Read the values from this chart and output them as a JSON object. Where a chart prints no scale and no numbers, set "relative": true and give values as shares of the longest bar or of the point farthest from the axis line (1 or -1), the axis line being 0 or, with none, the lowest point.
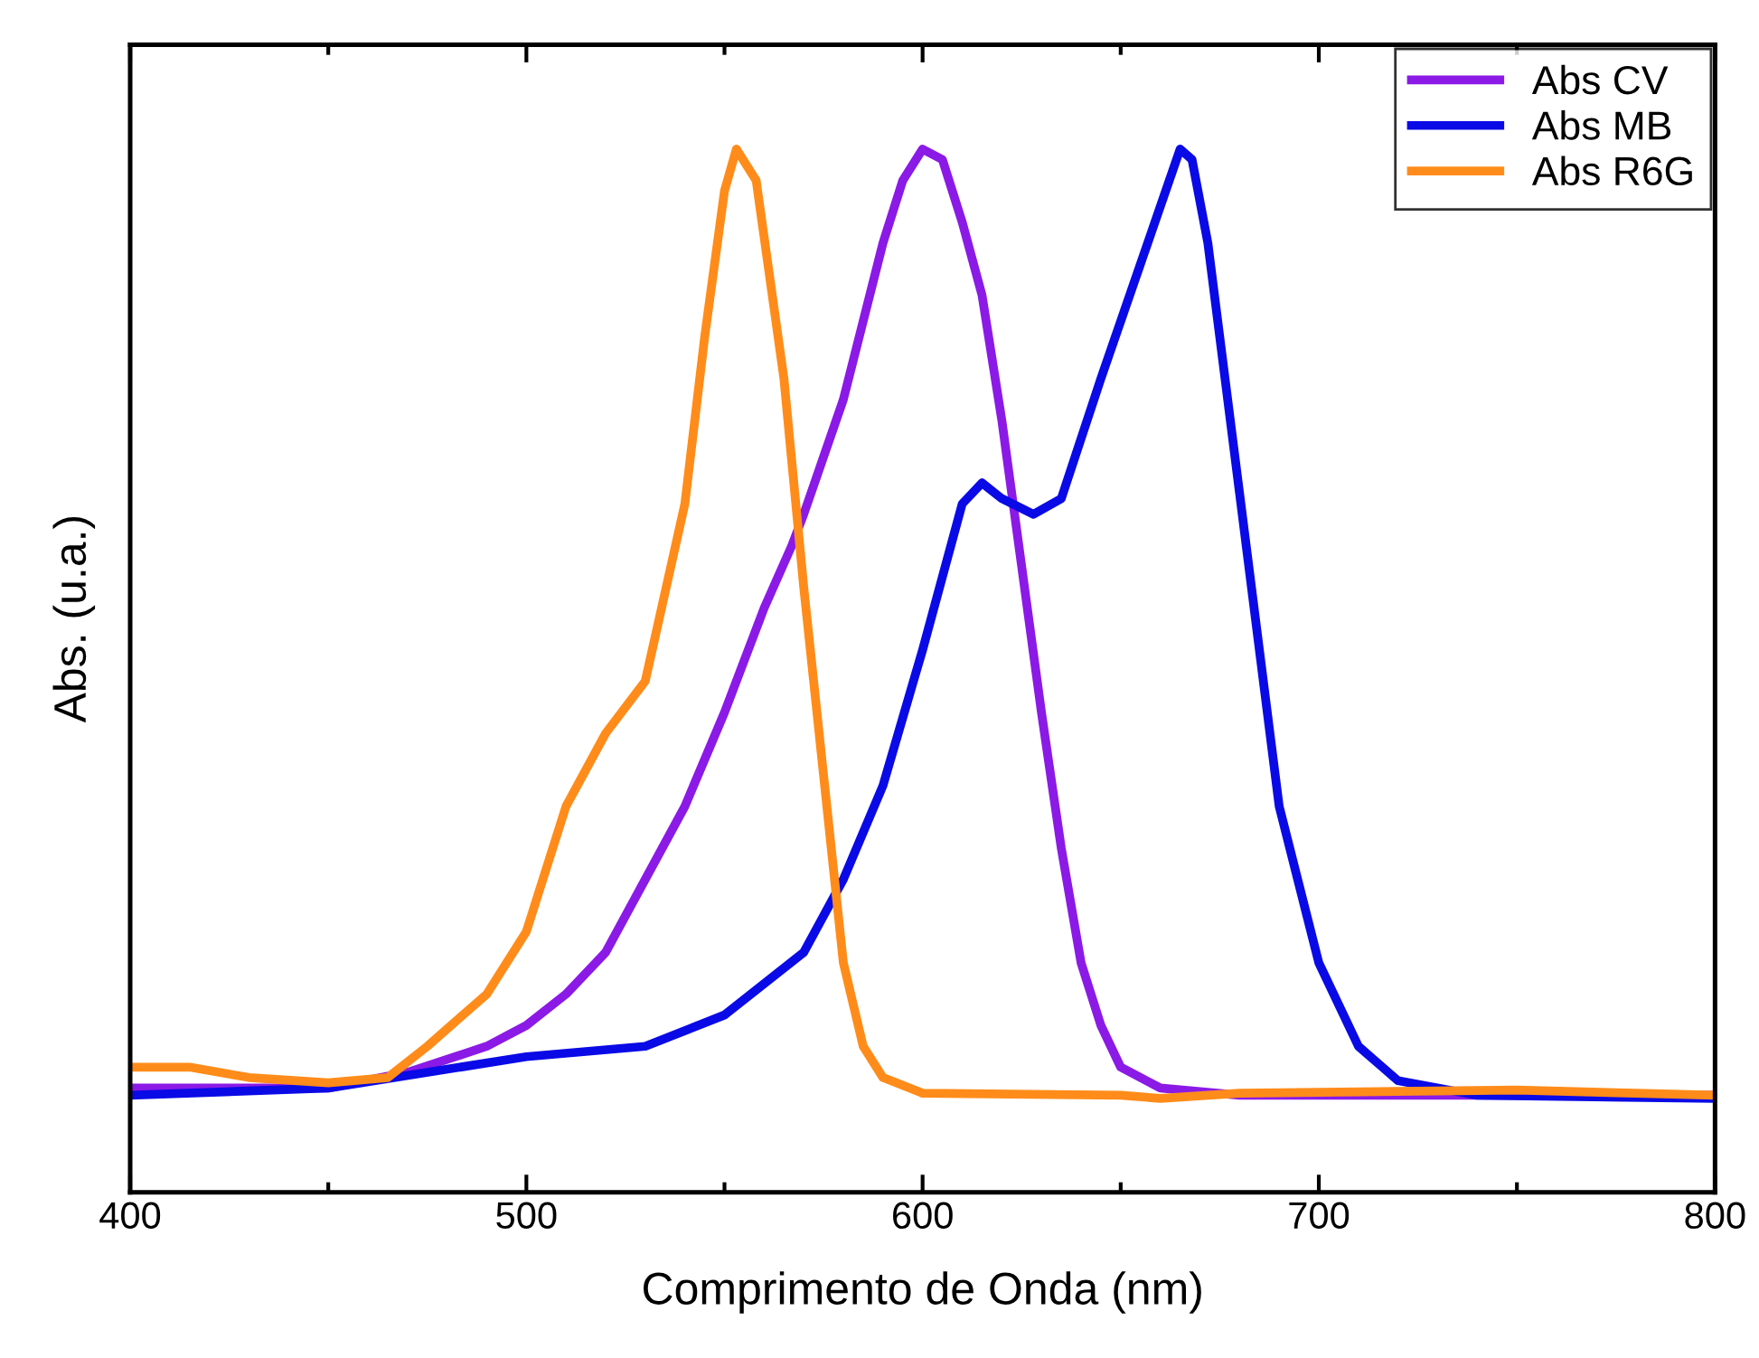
{
  "chart_data": {
    "type": "line",
    "xlabel": "Comprimento de Onda (nm)",
    "ylabel": "Abs. (u.a.)",
    "relative": true,
    "xlim": [
      400,
      800
    ],
    "xticks": [
      400,
      500,
      600,
      700,
      800
    ],
    "legend": "top right",
    "grid": false,
    "marker": "none",
    "line_style": "solid",
    "series": [
      {
        "name": "Abs CV",
        "color": "#8b1ae6",
        "x": [
          400,
          450,
          470,
          490,
          500,
          510,
          520,
          530,
          540,
          550,
          560,
          567,
          570,
          580,
          590,
          595,
          600,
          605,
          610,
          615,
          620,
          625,
          630,
          635,
          640,
          645,
          650,
          660,
          680,
          700,
          800
        ],
        "values": [
          0.1,
          0.1,
          0.115,
          0.14,
          0.16,
          0.19,
          0.23,
          0.3,
          0.37,
          0.46,
          0.56,
          0.62,
          0.65,
          0.76,
          0.91,
          0.97,
          1.0,
          0.99,
          0.93,
          0.86,
          0.74,
          0.6,
          0.46,
          0.33,
          0.22,
          0.16,
          0.12,
          0.1,
          0.093,
          0.093,
          0.093
        ]
      },
      {
        "name": "Abs MB",
        "color": "#0a0ae6",
        "x": [
          400,
          450,
          500,
          530,
          550,
          570,
          580,
          590,
          600,
          610,
          615,
          620,
          628,
          635,
          645,
          655,
          665,
          668,
          672,
          680,
          690,
          700,
          710,
          720,
          740,
          800
        ],
        "values": [
          0.093,
          0.1,
          0.13,
          0.14,
          0.17,
          0.23,
          0.3,
          0.39,
          0.52,
          0.66,
          0.68,
          0.665,
          0.65,
          0.665,
          0.78,
          0.89,
          1.0,
          0.99,
          0.91,
          0.67,
          0.37,
          0.22,
          0.14,
          0.107,
          0.093,
          0.09
        ]
      },
      {
        "name": "Abs R6G",
        "color": "#ff8c1a",
        "x": [
          400,
          415,
          430,
          450,
          465,
          475,
          490,
          500,
          510,
          520,
          530,
          540,
          545,
          550,
          553,
          558,
          565,
          570,
          575,
          580,
          585,
          590,
          600,
          650,
          660,
          680,
          750,
          780,
          800
        ],
        "values": [
          0.12,
          0.12,
          0.11,
          0.105,
          0.11,
          0.14,
          0.19,
          0.25,
          0.37,
          0.44,
          0.49,
          0.66,
          0.82,
          0.96,
          1.0,
          0.97,
          0.78,
          0.58,
          0.4,
          0.22,
          0.14,
          0.11,
          0.095,
          0.093,
          0.09,
          0.095,
          0.098,
          0.095,
          0.093
        ]
      }
    ]
  }
}
